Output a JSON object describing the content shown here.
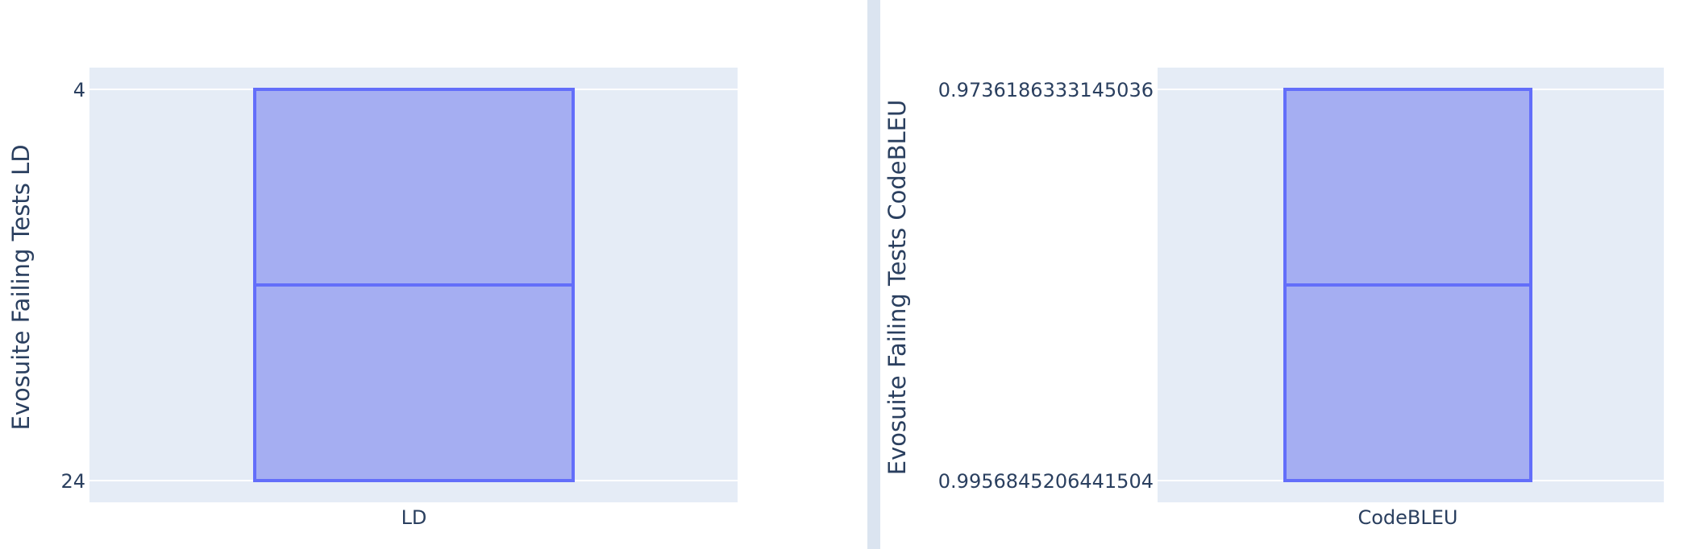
{
  "colors": {
    "plot_background": "#e5ecf6",
    "grid": "#ffffff",
    "box_fill": "#a5aef2",
    "box_line": "#636efa",
    "text": "#2a3f5f",
    "divider": "#dbe4f0"
  },
  "chart_data": [
    {
      "type": "box",
      "categories": [
        "LD"
      ],
      "x_tick_labels": [
        "LD"
      ],
      "y_tick_labels": [
        "4",
        "24"
      ],
      "ylabel": "Evosuite Failing Tests LD",
      "yaxis_reversed": true,
      "yrange": [
        4,
        24
      ],
      "series": [
        {
          "category": "LD",
          "q1": 4,
          "median": 14,
          "q3": 24,
          "lowerfence": 4,
          "upperfence": 24
        }
      ],
      "grid": true
    },
    {
      "type": "box",
      "categories": [
        "CodeBLEU"
      ],
      "x_tick_labels": [
        "CodeBLEU"
      ],
      "y_tick_labels": [
        "0.9736186333145036",
        "0.9956845206441504"
      ],
      "ylabel": "Evosuite Failing Tests CodeBLEU",
      "yaxis_reversed": true,
      "yrange": [
        0.9736186333145036,
        0.9956845206441504
      ],
      "series": [
        {
          "category": "CodeBLEU",
          "q1": 0.9736186333145036,
          "median": 0.984651576979327,
          "q3": 0.9956845206441504,
          "lowerfence": 0.9736186333145036,
          "upperfence": 0.9956845206441504
        }
      ],
      "grid": true
    }
  ]
}
